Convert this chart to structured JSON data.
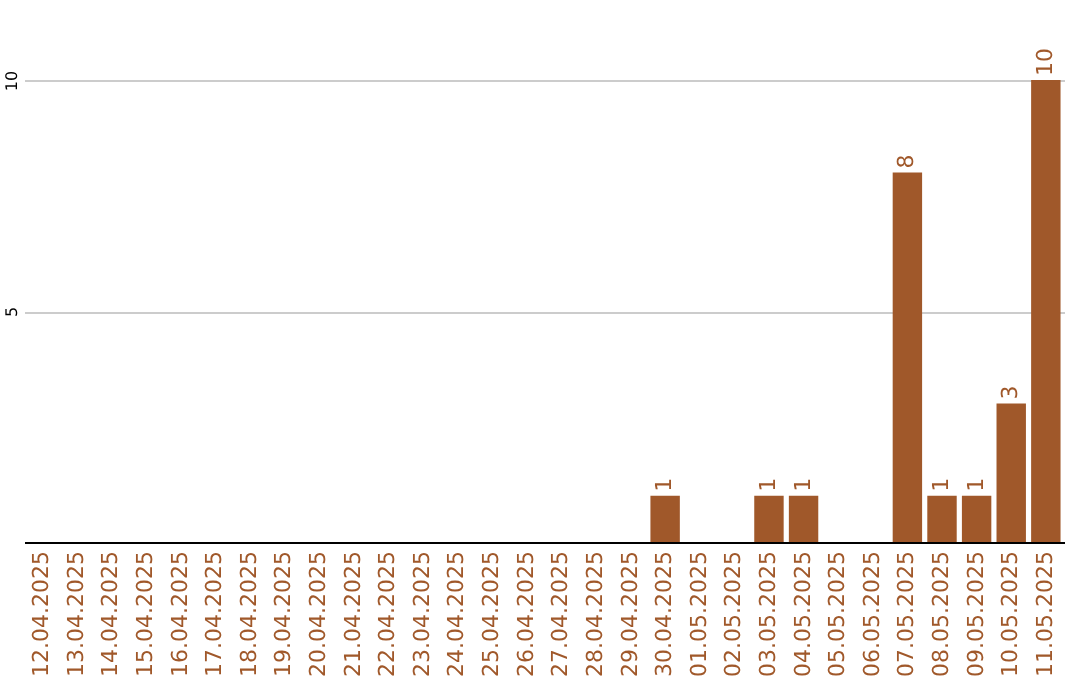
{
  "chart_data": {
    "type": "bar",
    "categories": [
      "12.04.2025",
      "13.04.2025",
      "14.04.2025",
      "15.04.2025",
      "16.04.2025",
      "17.04.2025",
      "18.04.2025",
      "19.04.2025",
      "20.04.2025",
      "21.04.2025",
      "22.04.2025",
      "23.04.2025",
      "24.04.2025",
      "25.04.2025",
      "26.04.2025",
      "27.04.2025",
      "28.04.2025",
      "29.04.2025",
      "30.04.2025",
      "01.05.2025",
      "02.05.2025",
      "03.05.2025",
      "04.05.2025",
      "05.05.2025",
      "06.05.2025",
      "07.05.2025",
      "08.05.2025",
      "09.05.2025",
      "10.05.2025",
      "11.05.2025"
    ],
    "values": [
      0,
      0,
      0,
      0,
      0,
      0,
      0,
      0,
      0,
      0,
      0,
      0,
      0,
      0,
      0,
      0,
      0,
      0,
      1,
      0,
      0,
      1,
      1,
      0,
      0,
      8,
      1,
      1,
      3,
      10
    ],
    "value_labels": [
      null,
      null,
      null,
      null,
      null,
      null,
      null,
      null,
      null,
      null,
      null,
      null,
      null,
      null,
      null,
      null,
      null,
      null,
      "1",
      null,
      null,
      "1",
      "1",
      null,
      null,
      "8",
      "1",
      "1",
      "3",
      "10"
    ],
    "color": "#a0582a",
    "ylim": [
      0,
      10
    ],
    "yticks": [
      5,
      10
    ],
    "grid": "y"
  }
}
